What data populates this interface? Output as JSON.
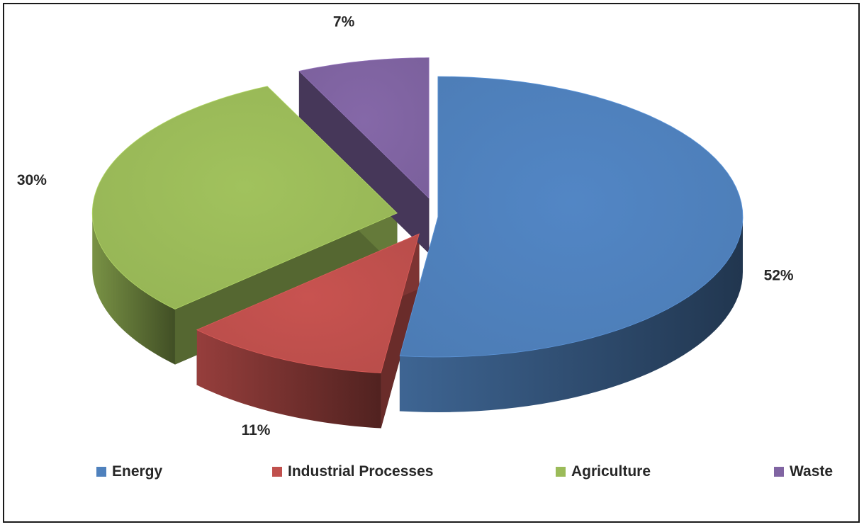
{
  "chart_data": {
    "type": "pie",
    "title": "",
    "slices": [
      {
        "name": "Energy",
        "value": 52,
        "label": "52%",
        "color": "#4f81bd"
      },
      {
        "name": "Industrial Processes",
        "value": 11,
        "label": "11%",
        "color": "#c0504d"
      },
      {
        "name": "Agriculture",
        "value": 30,
        "label": "30%",
        "color": "#9bbb59"
      },
      {
        "name": "Waste",
        "value": 7,
        "label": "7%",
        "color": "#8064a2"
      }
    ],
    "legend_position": "bottom",
    "style": "3d-exploded"
  }
}
